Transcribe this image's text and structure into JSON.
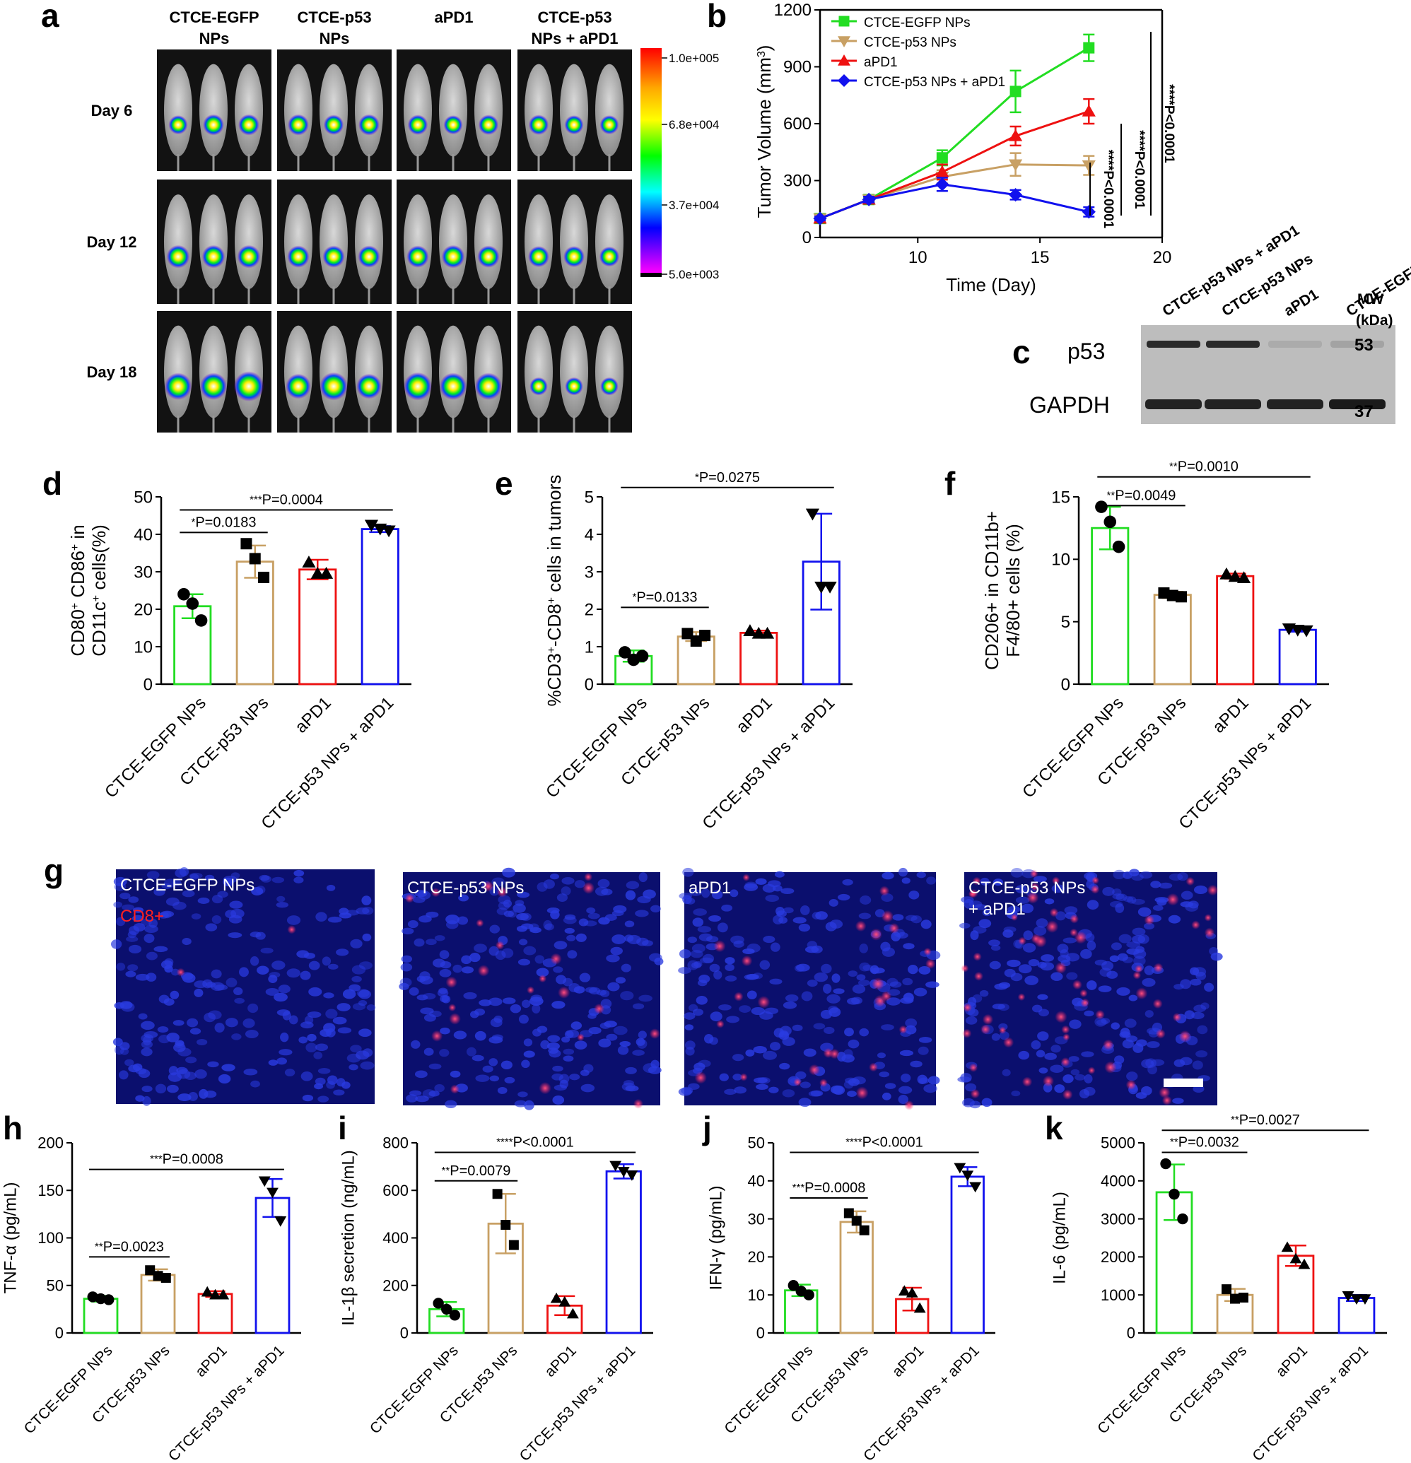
{
  "colors": {
    "egfp": "#22dd22",
    "p53": "#c8a064",
    "apd1": "#ee1111",
    "combo": "#1111ee"
  },
  "panel_a": {
    "letter": "a",
    "group_headers": [
      [
        "CTCE-EGFP",
        "NPs"
      ],
      [
        "CTCE-p53",
        "NPs"
      ],
      [
        "aPD1"
      ],
      [
        "CTCE-p53",
        "NPs + aPD1"
      ]
    ],
    "day_labels": [
      "Day 6",
      "Day 12",
      "Day 18"
    ],
    "colorbar_ticks": [
      "1.0e+005",
      "6.8e+004",
      "3.7e+004",
      "5.0e+003"
    ],
    "signal_levels": [
      [
        [
          0.4,
          0.5,
          0.5
        ],
        [
          0.5,
          0.45,
          0.5
        ],
        [
          0.45,
          0.4,
          0.45
        ],
        [
          0.45,
          0.4,
          0.4
        ]
      ],
      [
        [
          0.6,
          0.6,
          0.6
        ],
        [
          0.55,
          0.55,
          0.55
        ],
        [
          0.55,
          0.6,
          0.55
        ],
        [
          0.5,
          0.5,
          0.45
        ]
      ],
      [
        [
          0.8,
          0.8,
          0.95
        ],
        [
          0.7,
          0.85,
          0.7
        ],
        [
          0.85,
          0.8,
          0.8
        ],
        [
          0.35,
          0.35,
          0.35
        ]
      ]
    ]
  },
  "panel_c": {
    "letter": "c",
    "lane_labels": [
      "CTCE-p53 NPs + aPD1",
      "CTCE-p53 NPs",
      "aPD1",
      "CTCE-EGFP NPs"
    ],
    "bands": [
      "p53",
      "GAPDH"
    ],
    "mw_header": [
      "MW",
      "(kDa)"
    ],
    "mw_values": [
      "53",
      "37"
    ],
    "p53_intensity": [
      0.85,
      0.85,
      0.1,
      0.15
    ],
    "gapdh_intensity": [
      0.9,
      0.9,
      0.9,
      0.95
    ]
  },
  "panel_g": {
    "letter": "g",
    "labels": [
      [
        "CTCE-EGFP NPs"
      ],
      [
        "CTCE-p53 NPs"
      ],
      [
        "aPD1"
      ],
      [
        "CTCE-p53 NPs",
        "+ aPD1"
      ]
    ],
    "marker_label": "CD8+",
    "cd8_density": [
      0.02,
      0.25,
      0.3,
      0.7
    ]
  },
  "chart_data": [
    {
      "id": "b",
      "letter": "b",
      "type": "line",
      "xlabel": "Time (Day)",
      "ylabel": "Tumor Volume (mm",
      "ylabel_sup": "3",
      "xlim": [
        6,
        20
      ],
      "ylim": [
        0,
        1200
      ],
      "xticks": [
        10,
        15,
        20
      ],
      "yticks": [
        0,
        300,
        600,
        900,
        1200
      ],
      "series": [
        {
          "name": "CTCE-EGFP NPs",
          "marker": "square",
          "color": "#22dd22",
          "x": [
            6,
            8,
            11,
            14,
            17
          ],
          "y": [
            100,
            200,
            420,
            770,
            1000
          ],
          "err": [
            10,
            15,
            40,
            110,
            70
          ]
        },
        {
          "name": "CTCE-p53 NPs",
          "marker": "tri-down",
          "color": "#c8a064",
          "x": [
            6,
            8,
            11,
            14,
            17
          ],
          "y": [
            100,
            200,
            320,
            385,
            380
          ],
          "err": [
            10,
            15,
            35,
            60,
            50
          ]
        },
        {
          "name": "aPD1",
          "marker": "tri-up",
          "color": "#ee1111",
          "x": [
            6,
            8,
            11,
            14,
            17
          ],
          "y": [
            100,
            200,
            345,
            535,
            665
          ],
          "err": [
            10,
            15,
            40,
            50,
            65
          ]
        },
        {
          "name": "CTCE-p53 NPs + aPD1",
          "marker": "diamond",
          "color": "#1111ee",
          "x": [
            6,
            8,
            11,
            14,
            17
          ],
          "y": [
            100,
            200,
            280,
            225,
            135
          ],
          "err": [
            10,
            15,
            35,
            25,
            25
          ]
        }
      ],
      "significance": [
        "****P<0.0001",
        "****P<0.0001",
        "****P<0.0001"
      ]
    },
    {
      "id": "d",
      "letter": "d",
      "type": "bar",
      "categories": [
        "CTCE-EGFP NPs",
        "CTCE-p53 NPs",
        "aPD1",
        "CTCE-p53 NPs + aPD1"
      ],
      "values": [
        20.8,
        32.7,
        30.6,
        41.4
      ],
      "errors": [
        3.2,
        4.3,
        2.6,
        0.8
      ],
      "points": [
        [
          24,
          21.5,
          17
        ],
        [
          37.5,
          33.5,
          28.5
        ],
        [
          32.5,
          29.5,
          29.5
        ],
        [
          42.5,
          41.5,
          41
        ]
      ],
      "markers": [
        "circle",
        "square",
        "tri-up",
        "tri-down"
      ],
      "ylim": [
        0,
        50
      ],
      "yticks": [
        0,
        10,
        20,
        30,
        40,
        50
      ],
      "ylabel_lines": [
        [
          {
            "t": "CD80"
          },
          {
            "t": "+",
            "sup": true
          },
          {
            "t": " CD86"
          },
          {
            "t": "+",
            "sup": true
          },
          {
            "t": " in"
          }
        ],
        [
          {
            "t": "CD11c"
          },
          {
            "t": "+",
            "sup": true
          },
          {
            "t": " cells(%)"
          }
        ]
      ],
      "comparisons": [
        {
          "a": 0,
          "b": 1,
          "y": 40.5,
          "stars": "*",
          "label": "P=0.0183"
        },
        {
          "a": 0,
          "b": 3,
          "y": 46.5,
          "stars": "***",
          "label": "P=0.0004"
        }
      ]
    },
    {
      "id": "e",
      "letter": "e",
      "type": "bar",
      "categories": [
        "CTCE-EGFP NPs",
        "CTCE-p53 NPs",
        "aPD1",
        "CTCE-p53 NPs + aPD1"
      ],
      "values": [
        0.75,
        1.27,
        1.37,
        3.27
      ],
      "errors": [
        0.15,
        0.12,
        0.06,
        1.28
      ],
      "points": [
        [
          0.85,
          0.65,
          0.75
        ],
        [
          1.35,
          1.15,
          1.3
        ],
        [
          1.42,
          1.35,
          1.35
        ],
        [
          4.55,
          2.6,
          2.6
        ]
      ],
      "markers": [
        "circle",
        "square",
        "tri-up",
        "tri-down"
      ],
      "ylim": [
        0,
        5
      ],
      "yticks": [
        0,
        1,
        2,
        3,
        4,
        5
      ],
      "ylabel_lines": [
        [
          {
            "t": "%CD3"
          },
          {
            "t": "+",
            "sup": true
          },
          {
            "t": "-CD8"
          },
          {
            "t": "+",
            "sup": true
          },
          {
            "t": " cells in tumors"
          }
        ]
      ],
      "comparisons": [
        {
          "a": 0,
          "b": 1,
          "y": 2.05,
          "stars": "*",
          "label": "P=0.0133"
        },
        {
          "a": 0,
          "b": 3,
          "y": 5.25,
          "stars": "*",
          "label": "P=0.0275"
        }
      ]
    },
    {
      "id": "f",
      "letter": "f",
      "type": "bar",
      "categories": [
        "CTCE-EGFP NPs",
        "CTCE-p53 NPs",
        "aPD1",
        "CTCE-p53 NPs + aPD1"
      ],
      "values": [
        12.5,
        7.15,
        8.65,
        4.35
      ],
      "errors": [
        1.7,
        0.25,
        0.2,
        0.15
      ],
      "points": [
        [
          14.2,
          13.0,
          11.0
        ],
        [
          7.3,
          7.1,
          7.0
        ],
        [
          8.8,
          8.6,
          8.5
        ],
        [
          4.45,
          4.35,
          4.3
        ]
      ],
      "markers": [
        "circle",
        "square",
        "tri-up",
        "tri-down"
      ],
      "ylim": [
        0,
        15
      ],
      "yticks": [
        0,
        5,
        10,
        15
      ],
      "ylabel_lines": [
        [
          {
            "t": "CD206+ in CD11b+"
          }
        ],
        [
          {
            "t": "F4/80+ cells (%)"
          }
        ]
      ],
      "comparisons": [
        {
          "a": 0,
          "b": 1,
          "y": 14.3,
          "stars": "**",
          "label": "P=0.0049"
        },
        {
          "a": 0,
          "b": 3,
          "y": 16.6,
          "stars": "**",
          "label": "P=0.0010"
        }
      ]
    },
    {
      "id": "h",
      "letter": "h",
      "type": "bar",
      "categories": [
        "CTCE-EGFP NPs",
        "CTCE-p53 NPs",
        "aPD1",
        "CTCE-p53 NPs + aPD1"
      ],
      "values": [
        36,
        61,
        41,
        142
      ],
      "errors": [
        3,
        6,
        3,
        20
      ],
      "points": [
        [
          38,
          36,
          35
        ],
        [
          66,
          60,
          58
        ],
        [
          43,
          40,
          40
        ],
        [
          160,
          148,
          118
        ]
      ],
      "markers": [
        "circle",
        "square",
        "tri-up",
        "tri-down"
      ],
      "ylim": [
        0,
        200
      ],
      "yticks": [
        0,
        50,
        100,
        150,
        200
      ],
      "ylabel_lines": [
        [
          {
            "t": "TNF-α (pg/mL)"
          }
        ]
      ],
      "comparisons": [
        {
          "a": 0,
          "b": 1,
          "y": 80,
          "stars": "**",
          "label": "P=0.0023"
        },
        {
          "a": 0,
          "b": 3,
          "y": 172,
          "stars": "***",
          "label": "P=0.0008"
        }
      ]
    },
    {
      "id": "i",
      "letter": "i",
      "type": "bar",
      "categories": [
        "CTCE-EGFP NPs",
        "CTCE-p53 NPs",
        "aPD1",
        "CTCE-p53 NPs + aPD1"
      ],
      "values": [
        100,
        460,
        115,
        680
      ],
      "errors": [
        30,
        125,
        40,
        30
      ],
      "points": [
        [
          125,
          100,
          75
        ],
        [
          585,
          455,
          370
        ],
        [
          145,
          130,
          80
        ],
        [
          705,
          680,
          665
        ]
      ],
      "markers": [
        "circle",
        "square",
        "tri-up",
        "tri-down"
      ],
      "ylim": [
        0,
        800
      ],
      "yticks": [
        0,
        200,
        400,
        600,
        800
      ],
      "ylabel_lines": [
        [
          {
            "t": "IL-1β secretion (ng/mL)"
          }
        ]
      ],
      "comparisons": [
        {
          "a": 0,
          "b": 1,
          "y": 640,
          "stars": "**",
          "label": "P=0.0079"
        },
        {
          "a": 0,
          "b": 3,
          "y": 760,
          "stars": "****",
          "label": "P<0.0001"
        }
      ]
    },
    {
      "id": "j",
      "letter": "j",
      "type": "bar",
      "categories": [
        "CTCE-EGFP NPs",
        "CTCE-p53 NPs",
        "aPD1",
        "CTCE-p53 NPs + aPD1"
      ],
      "values": [
        11.2,
        29.2,
        8.9,
        41.1
      ],
      "errors": [
        1.5,
        2.8,
        3.0,
        2.5
      ],
      "points": [
        [
          12.5,
          11,
          10
        ],
        [
          31.5,
          29.5,
          27
        ],
        [
          11,
          10.5,
          6.5
        ],
        [
          43.5,
          41.5,
          38.5
        ]
      ],
      "markers": [
        "circle",
        "square",
        "tri-up",
        "tri-down"
      ],
      "ylim": [
        0,
        50
      ],
      "yticks": [
        0,
        10,
        20,
        30,
        40,
        50
      ],
      "ylabel_lines": [
        [
          {
            "t": "IFN-γ (pg/mL)"
          }
        ]
      ],
      "comparisons": [
        {
          "a": 0,
          "b": 1,
          "y": 35.5,
          "stars": "***",
          "label": "P=0.0008"
        },
        {
          "a": 0,
          "b": 3,
          "y": 47.5,
          "stars": "****",
          "label": "P<0.0001"
        }
      ]
    },
    {
      "id": "k",
      "letter": "k",
      "type": "bar",
      "categories": [
        "CTCE-EGFP NPs",
        "CTCE-p53 NPs",
        "aPD1",
        "CTCE-p53 NPs + aPD1"
      ],
      "values": [
        3700,
        1000,
        2030,
        920
      ],
      "errors": [
        730,
        160,
        270,
        80
      ],
      "points": [
        [
          4450,
          3650,
          3000
        ],
        [
          1150,
          900,
          930
        ],
        [
          2250,
          1950,
          1800
        ],
        [
          980,
          900,
          900
        ]
      ],
      "markers": [
        "circle",
        "square",
        "tri-up",
        "tri-down"
      ],
      "ylim": [
        0,
        5000
      ],
      "yticks": [
        0,
        1000,
        2000,
        3000,
        4000,
        5000
      ],
      "ylabel_lines": [
        [
          {
            "t": "IL-6 (pg/mL)"
          }
        ]
      ],
      "comparisons": [
        {
          "a": 0,
          "b": 1,
          "y": 4750,
          "stars": "**",
          "label": "P=0.0032"
        },
        {
          "a": 0,
          "b": 3,
          "y": 5330,
          "stars": "**",
          "label": "P=0.0027"
        }
      ]
    }
  ]
}
